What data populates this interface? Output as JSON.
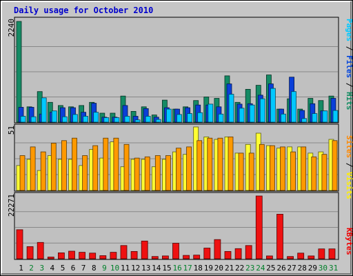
{
  "chart_data": {
    "type": "bar",
    "title": "Daily usage for October 2010",
    "categories": [
      "1",
      "2",
      "3",
      "4",
      "5",
      "6",
      "7",
      "8",
      "9",
      "10",
      "11",
      "12",
      "13",
      "14",
      "15",
      "16",
      "17",
      "18",
      "19",
      "20",
      "21",
      "22",
      "23",
      "24",
      "25",
      "26",
      "27",
      "28",
      "29",
      "30",
      "31"
    ],
    "weekend_days": [
      "2",
      "3",
      "9",
      "10",
      "16",
      "17",
      "23",
      "24",
      "30",
      "31"
    ],
    "panels": [
      {
        "id": "hits",
        "max_label": "2240",
        "ylim": [
          0,
          2240
        ],
        "axis_legend": [
          {
            "text": "Pages",
            "color": "#00c8ff"
          },
          {
            "text": " / ",
            "color": "#000000"
          },
          {
            "text": "Files",
            "color": "#0044dd"
          },
          {
            "text": " / ",
            "color": "#000000"
          },
          {
            "text": "Hits",
            "color": "#0c8a5e"
          }
        ],
        "series": [
          {
            "name": "Hits",
            "color": "#158a64",
            "values": [
              2240,
              340,
              680,
              440,
              370,
              340,
              370,
              440,
              200,
              200,
              580,
              240,
              340,
              160,
              490,
              290,
              340,
              480,
              560,
              530,
              1030,
              440,
              730,
              820,
              1050,
              290,
              520,
              290,
              530,
              480,
              580
            ]
          },
          {
            "name": "Files",
            "color": "#0a3fd8",
            "values": [
              330,
              330,
              180,
              220,
              320,
              320,
              220,
              420,
              110,
              110,
              370,
              130,
              300,
              110,
              320,
              290,
              320,
              380,
              380,
              340,
              850,
              400,
              410,
              600,
              850,
              290,
              1000,
              260,
              410,
              250,
              530
            ]
          },
          {
            "name": "Pages",
            "color": "#00c8ff",
            "values": [
              130,
              120,
              540,
              250,
              120,
              170,
              130,
              220,
              100,
              100,
              130,
              50,
              130,
              60,
              290,
              170,
              190,
              210,
              400,
              180,
              620,
              310,
              380,
              520,
              750,
              180,
              680,
              80,
              190,
              250,
              260
            ]
          }
        ]
      },
      {
        "id": "visits",
        "max_label": "51",
        "ylim": [
          0,
          51
        ],
        "axis_legend": [
          {
            "text": "Sites",
            "color": "#ff8800"
          },
          {
            "text": " / ",
            "color": "#000000"
          },
          {
            "text": "Visits",
            "color": "#ffee00"
          }
        ],
        "series": [
          {
            "name": "Visits",
            "color": "#ffff33",
            "values": [
              20,
              25,
              16,
              28,
              25,
              25,
              20,
              33,
              26,
              39,
              19,
              25,
              25,
              19,
              25,
              31,
              29,
              51,
              43,
              41,
              43,
              30,
              37,
              46,
              36,
              34,
              35,
              35,
              30,
              31,
              41
            ]
          },
          {
            "name": "Sites",
            "color": "#ff9900",
            "values": [
              28,
              35,
              31,
              38,
              40,
              42,
              28,
              36,
              42,
              42,
              37,
              26,
              27,
              28,
              28,
              34,
              35,
              40,
              42,
              42,
              43,
              30,
              30,
              37,
              36,
              35,
              31,
              35,
              27,
              29,
              40
            ]
          }
        ]
      },
      {
        "id": "kbytes",
        "max_label": "22271",
        "ylim": [
          0,
          22271
        ],
        "axis_legend": [
          {
            "text": "KBytes",
            "color": "#ee0000"
          }
        ],
        "series": [
          {
            "name": "KBytes",
            "color": "#ee1111",
            "values": [
              10300,
              4300,
              5800,
              600,
              2100,
              2700,
              2300,
              2000,
              1100,
              2300,
              4700,
              2600,
              6300,
              800,
              1000,
              5500,
              1200,
              1300,
              3800,
              6800,
              2600,
              3600,
              4700,
              22271,
              1000,
              15800,
              800,
              2000,
              1000,
              3500,
              3500
            ]
          }
        ]
      }
    ]
  }
}
